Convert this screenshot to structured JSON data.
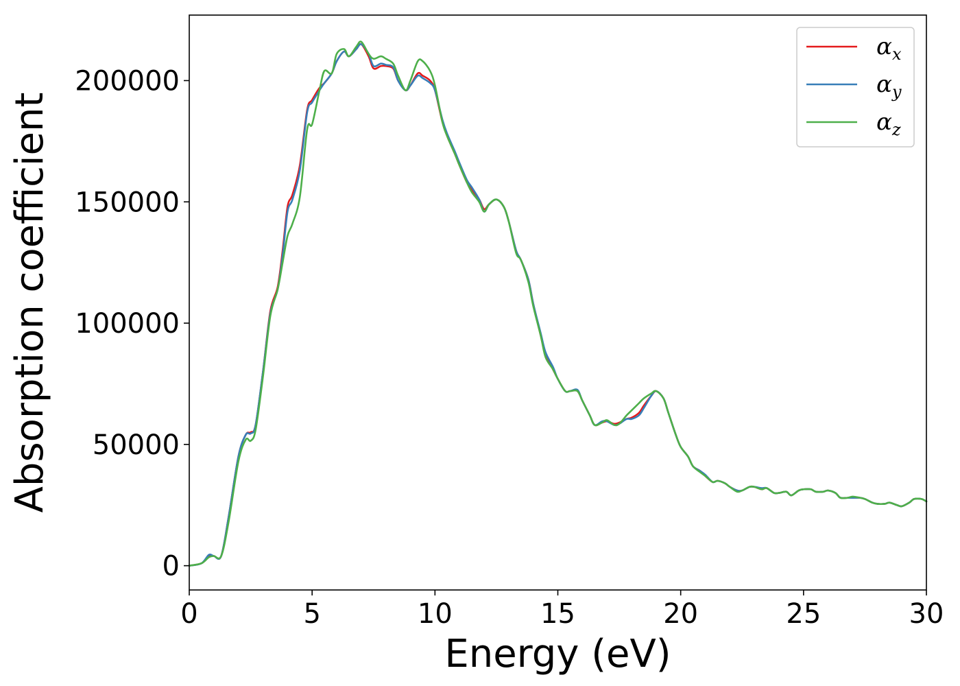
{
  "chart_data": {
    "type": "line",
    "title": "",
    "xlabel": "Energy (eV)",
    "ylabel": "Absorption coefficient",
    "xlim": [
      0,
      30
    ],
    "ylim": [
      -10000,
      227000
    ],
    "xticks": [
      0,
      5,
      10,
      15,
      20,
      25,
      30
    ],
    "xtick_labels": [
      "0",
      "5",
      "10",
      "15",
      "20",
      "25",
      "30"
    ],
    "yticks": [
      0,
      50000,
      100000,
      150000,
      200000
    ],
    "ytick_labels": [
      "0",
      "50000",
      "100000",
      "150000",
      "200000"
    ],
    "grid": false,
    "legend_position": "top-right",
    "series": [
      {
        "name": "α",
        "subscript": "x",
        "color": "#e41a1c",
        "x": [
          0,
          0.5,
          0.8,
          1.0,
          1.3,
          1.6,
          2.0,
          2.3,
          2.5,
          2.7,
          3.0,
          3.3,
          3.6,
          3.8,
          4.0,
          4.2,
          4.5,
          4.8,
          5.0,
          5.3,
          5.5,
          5.8,
          6.0,
          6.3,
          6.5,
          6.8,
          7.0,
          7.3,
          7.5,
          7.8,
          8.0,
          8.3,
          8.5,
          8.8,
          9.0,
          9.3,
          9.5,
          9.8,
          10.0,
          10.3,
          10.5,
          10.8,
          11.0,
          11.3,
          11.5,
          11.8,
          12.0,
          12.2,
          12.5,
          12.8,
          13.0,
          13.3,
          13.5,
          13.8,
          14.0,
          14.3,
          14.5,
          14.8,
          15.0,
          15.3,
          15.5,
          15.8,
          16.0,
          16.3,
          16.5,
          16.8,
          17.0,
          17.3,
          17.5,
          17.8,
          18.0,
          18.3,
          18.5,
          18.8,
          19.0,
          19.3,
          19.5,
          19.8,
          20.0,
          20.3,
          20.5,
          20.8,
          21.0,
          21.3,
          21.5,
          21.8,
          22.0,
          22.3,
          22.5,
          22.8,
          23.0,
          23.3,
          23.5,
          23.8,
          24.0,
          24.3,
          24.5,
          24.8,
          25.0,
          25.3,
          25.5,
          25.8,
          26.0,
          26.3,
          26.5,
          26.8,
          27.0,
          27.3,
          27.5,
          27.8,
          28.0,
          28.3,
          28.5,
          28.8,
          29.0,
          29.3,
          29.5,
          29.8,
          30.0
        ],
        "values": [
          0,
          1000,
          4000,
          4000,
          4000,
          20000,
          45000,
          54000,
          55000,
          58000,
          80000,
          105000,
          115000,
          130000,
          148000,
          153000,
          165000,
          188000,
          192000,
          197000,
          199000,
          203000,
          208000,
          212000,
          210000,
          213000,
          215000,
          210000,
          205000,
          206000,
          206000,
          205000,
          200000,
          196000,
          198000,
          203000,
          202000,
          200000,
          196000,
          183000,
          177000,
          170000,
          165000,
          158000,
          155000,
          151000,
          147000,
          149000,
          151000,
          148000,
          142000,
          130000,
          126000,
          118000,
          108000,
          95000,
          87000,
          81000,
          77000,
          72000,
          72000,
          72000,
          68000,
          62000,
          58000,
          59000,
          59500,
          58500,
          59000,
          60500,
          61000,
          63000,
          66000,
          70000,
          72000,
          69000,
          63000,
          54000,
          49000,
          45000,
          41000,
          39000,
          37000,
          34500,
          35000,
          34000,
          32500,
          31000,
          31000,
          32500,
          32500,
          31500,
          32000,
          30000,
          30000,
          30500,
          29000,
          31000,
          31500,
          31500,
          30500,
          30500,
          31000,
          30000,
          28000,
          28000,
          28000,
          28000,
          27500,
          26000,
          25500,
          25500,
          26000,
          25000,
          24500,
          26000,
          27500,
          27500,
          26500
        ]
      },
      {
        "name": "α",
        "subscript": "y",
        "color": "#377eb8",
        "x": [
          0,
          0.5,
          0.8,
          1.0,
          1.3,
          1.6,
          2.0,
          2.3,
          2.5,
          2.7,
          3.0,
          3.3,
          3.6,
          3.8,
          4.0,
          4.2,
          4.5,
          4.8,
          5.0,
          5.3,
          5.5,
          5.8,
          6.0,
          6.3,
          6.5,
          6.8,
          7.0,
          7.3,
          7.5,
          7.8,
          8.0,
          8.3,
          8.5,
          8.8,
          9.0,
          9.3,
          9.5,
          9.8,
          10.0,
          10.3,
          10.5,
          10.8,
          11.0,
          11.3,
          11.5,
          11.8,
          12.0,
          12.2,
          12.5,
          12.8,
          13.0,
          13.3,
          13.5,
          13.8,
          14.0,
          14.3,
          14.5,
          14.8,
          15.0,
          15.3,
          15.5,
          15.8,
          16.0,
          16.3,
          16.5,
          16.8,
          17.0,
          17.3,
          17.5,
          17.8,
          18.0,
          18.3,
          18.5,
          18.8,
          19.0,
          19.3,
          19.5,
          19.8,
          20.0,
          20.3,
          20.5,
          20.8,
          21.0,
          21.3,
          21.5,
          21.8,
          22.0,
          22.3,
          22.5,
          22.8,
          23.0,
          23.3,
          23.5,
          23.8,
          24.0,
          24.3,
          24.5,
          24.8,
          25.0,
          25.3,
          25.5,
          25.8,
          26.0,
          26.3,
          26.5,
          26.8,
          27.0,
          27.3,
          27.5,
          27.8,
          28.0,
          28.3,
          28.5,
          28.8,
          29.0,
          29.3,
          29.5,
          29.8,
          30.0
        ],
        "values": [
          0,
          1000,
          4500,
          4000,
          4000,
          20000,
          45000,
          54000,
          54500,
          58000,
          80000,
          104000,
          114000,
          128000,
          146000,
          151000,
          163000,
          187000,
          191000,
          196000,
          199000,
          203000,
          208000,
          212000,
          210000,
          213000,
          215000,
          211000,
          206000,
          207000,
          206500,
          205500,
          200000,
          196000,
          198000,
          202000,
          201000,
          199000,
          196000,
          184000,
          178000,
          171000,
          166000,
          159000,
          156000,
          151000,
          146000,
          149000,
          151000,
          148000,
          142000,
          130000,
          126000,
          118000,
          108000,
          96000,
          88000,
          82000,
          77000,
          72000,
          72000,
          72500,
          68000,
          62000,
          58000,
          59500,
          59500,
          58000,
          58500,
          60500,
          60500,
          62000,
          65000,
          70000,
          72000,
          69000,
          63000,
          54000,
          49000,
          45000,
          41000,
          39000,
          37500,
          34500,
          35000,
          34000,
          32500,
          31000,
          31000,
          32500,
          32500,
          32000,
          32000,
          30000,
          30000,
          30500,
          29000,
          31000,
          31500,
          31500,
          30500,
          30500,
          31000,
          30000,
          28000,
          28000,
          28000,
          28000,
          27500,
          26000,
          25500,
          25500,
          26000,
          25000,
          24500,
          26000,
          27500,
          27500,
          26500
        ]
      },
      {
        "name": "α",
        "subscript": "z",
        "color": "#4daf4a",
        "x": [
          0,
          0.5,
          0.8,
          1.0,
          1.3,
          1.6,
          2.0,
          2.3,
          2.5,
          2.7,
          3.0,
          3.3,
          3.6,
          3.8,
          4.0,
          4.2,
          4.5,
          4.8,
          5.0,
          5.3,
          5.5,
          5.8,
          6.0,
          6.3,
          6.5,
          6.8,
          7.0,
          7.3,
          7.5,
          7.8,
          8.0,
          8.3,
          8.5,
          8.8,
          9.0,
          9.3,
          9.5,
          9.8,
          10.0,
          10.3,
          10.5,
          10.8,
          11.0,
          11.3,
          11.5,
          11.8,
          12.0,
          12.2,
          12.5,
          12.8,
          13.0,
          13.3,
          13.5,
          13.8,
          14.0,
          14.3,
          14.5,
          14.8,
          15.0,
          15.3,
          15.5,
          15.8,
          16.0,
          16.3,
          16.5,
          16.8,
          17.0,
          17.3,
          17.5,
          17.8,
          18.0,
          18.3,
          18.5,
          18.8,
          19.0,
          19.3,
          19.5,
          19.8,
          20.0,
          20.3,
          20.5,
          20.8,
          21.0,
          21.3,
          21.5,
          21.8,
          22.0,
          22.3,
          22.5,
          22.8,
          23.0,
          23.3,
          23.5,
          23.8,
          24.0,
          24.3,
          24.5,
          24.8,
          25.0,
          25.3,
          25.5,
          25.8,
          26.0,
          26.3,
          26.5,
          26.8,
          27.0,
          27.3,
          27.5,
          27.8,
          28.0,
          28.3,
          28.5,
          28.8,
          29.0,
          29.3,
          29.5,
          29.8,
          30.0
        ],
        "values": [
          0,
          1000,
          3500,
          4000,
          4000,
          18000,
          43000,
          52000,
          51500,
          56000,
          78000,
          103000,
          114000,
          125000,
          136000,
          141000,
          152000,
          180000,
          182000,
          196000,
          204000,
          203000,
          211000,
          213000,
          210000,
          214000,
          216000,
          211000,
          209000,
          210000,
          209000,
          207000,
          202000,
          196000,
          200000,
          208000,
          208000,
          204000,
          198000,
          183000,
          177000,
          170000,
          165000,
          158000,
          154000,
          150000,
          146000,
          149000,
          151000,
          148000,
          142000,
          129000,
          126000,
          117000,
          107000,
          95000,
          86000,
          81000,
          77000,
          72000,
          72000,
          72000,
          68000,
          62000,
          58000,
          59000,
          60000,
          58000,
          58500,
          62000,
          64000,
          67000,
          69000,
          71000,
          72000,
          69000,
          63000,
          54000,
          49000,
          45000,
          41000,
          38500,
          37000,
          34500,
          35000,
          34000,
          32500,
          30500,
          31000,
          32500,
          32500,
          31500,
          32000,
          30000,
          30000,
          30500,
          29000,
          31000,
          31500,
          31500,
          30500,
          30500,
          31000,
          30000,
          28000,
          28000,
          28500,
          28000,
          27500,
          26000,
          25500,
          25500,
          26000,
          25000,
          24500,
          26000,
          27500,
          27500,
          26500
        ]
      }
    ]
  }
}
